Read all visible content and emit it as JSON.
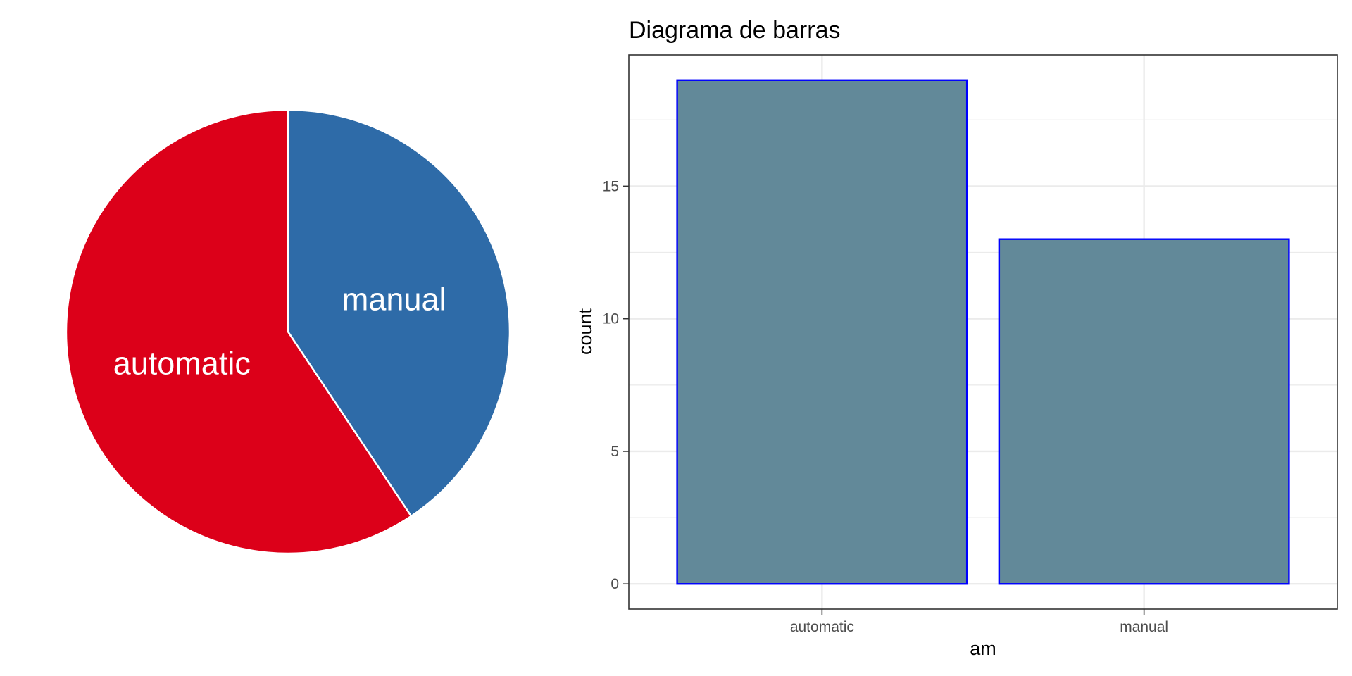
{
  "chart_data": [
    {
      "type": "pie",
      "categories": [
        "automatic",
        "manual"
      ],
      "values": [
        19,
        13
      ],
      "colors": [
        "#DC0019",
        "#2E6BA8"
      ],
      "slice_border_color": "#ffffff",
      "labels": [
        "automatic",
        "manual"
      ],
      "title": "",
      "legend": "none"
    },
    {
      "type": "bar",
      "title": "Diagrama de barras",
      "xlabel": "am",
      "ylabel": "count",
      "categories": [
        "automatic",
        "manual"
      ],
      "values": [
        19,
        13
      ],
      "ylim": [
        -0.95,
        19.95
      ],
      "yticks": [
        0,
        5,
        10,
        15
      ],
      "yticks_labels": [
        "0",
        "5",
        "10",
        "15"
      ],
      "grid": true,
      "legend": "none",
      "bar_fill": "#5C8495",
      "bar_border": "#0000FF",
      "panel_border": "#333333",
      "grid_color": "#EBEBEB"
    }
  ]
}
